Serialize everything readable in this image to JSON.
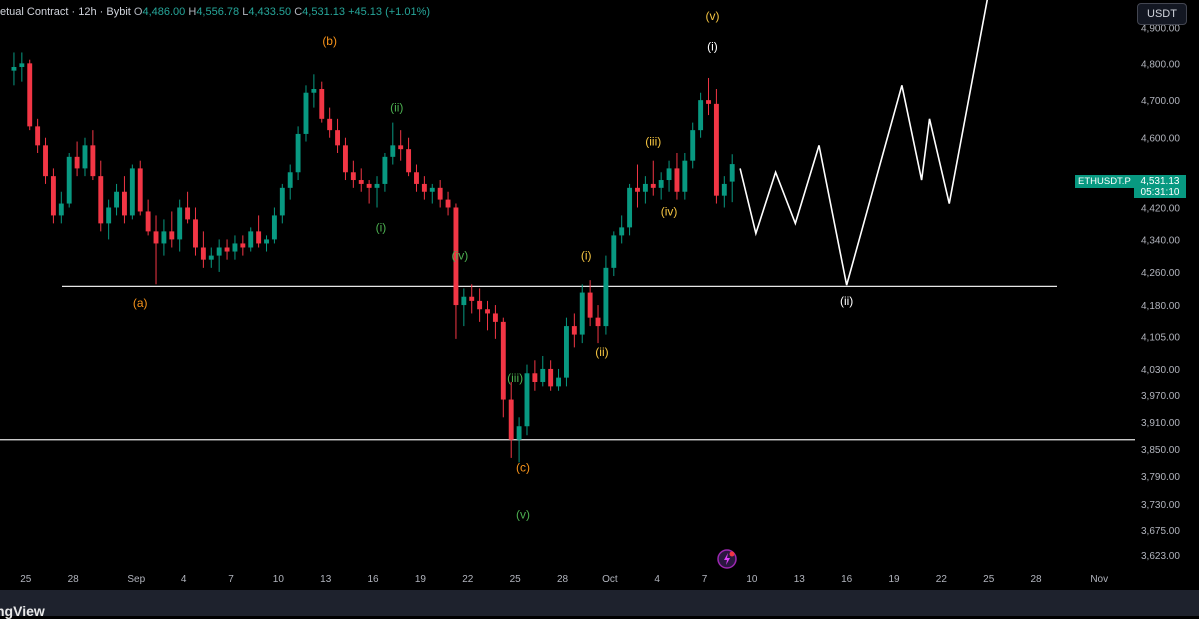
{
  "header": {
    "symbol_desc": "etual Contract · 12h · Bybit",
    "o_label": "O",
    "o_value": "4,486.00",
    "h_label": "H",
    "h_value": "4,556.78",
    "l_label": "L",
    "l_value": "4,433.50",
    "c_label": "C",
    "c_value": "4,531.13",
    "change": "+45.13 (+1.01%)"
  },
  "currency_button": "USDT",
  "last_price": {
    "symbol": "ETHUSDT.P",
    "price": "4,531.13",
    "countdown": "05:31:10"
  },
  "footer": {
    "logo_text": "ngView"
  },
  "colors": {
    "up": "#089981",
    "down": "#f23645",
    "background": "#000000",
    "text": "#d1d4dc"
  },
  "chart_data": {
    "type": "candlestick",
    "timeframe": "12h",
    "y_scale": "log",
    "y_range": [
      3590,
      5000
    ],
    "x_range": [
      "2025-08-24T00:00",
      "2025-11-02T00:00"
    ],
    "y_ticks": [
      "4,900.00",
      "4,800.00",
      "4,700.00",
      "4,600.00",
      "4,420.00",
      "4,340.00",
      "4,260.00",
      "4,180.00",
      "4,105.00",
      "4,030.00",
      "3,970.00",
      "3,910.00",
      "3,850.00",
      "3,790.00",
      "3,730.00",
      "3,675.00",
      "3,623.00"
    ],
    "y_tick_values": [
      4900,
      4800,
      4700,
      4600,
      4420,
      4340,
      4260,
      4180,
      4105,
      4030,
      3970,
      3910,
      3850,
      3790,
      3730,
      3675,
      3623
    ],
    "x_ticks": [
      {
        "label": "25",
        "date": "2025-08-25"
      },
      {
        "label": "28",
        "date": "2025-08-28"
      },
      {
        "label": "Sep",
        "date": "2025-09-01"
      },
      {
        "label": "4",
        "date": "2025-09-04"
      },
      {
        "label": "7",
        "date": "2025-09-07"
      },
      {
        "label": "10",
        "date": "2025-09-10"
      },
      {
        "label": "13",
        "date": "2025-09-13"
      },
      {
        "label": "16",
        "date": "2025-09-16"
      },
      {
        "label": "19",
        "date": "2025-09-19"
      },
      {
        "label": "22",
        "date": "2025-09-22"
      },
      {
        "label": "25",
        "date": "2025-09-25"
      },
      {
        "label": "28",
        "date": "2025-09-28"
      },
      {
        "label": "Oct",
        "date": "2025-10-01"
      },
      {
        "label": "4",
        "date": "2025-10-04"
      },
      {
        "label": "7",
        "date": "2025-10-07"
      },
      {
        "label": "10",
        "date": "2025-10-10"
      },
      {
        "label": "13",
        "date": "2025-10-13"
      },
      {
        "label": "16",
        "date": "2025-10-16"
      },
      {
        "label": "19",
        "date": "2025-10-19"
      },
      {
        "label": "22",
        "date": "2025-10-22"
      },
      {
        "label": "25",
        "date": "2025-10-25"
      },
      {
        "label": "28",
        "date": "2025-10-28"
      },
      {
        "label": "Nov",
        "date": "2025-11-01"
      }
    ],
    "candles": [
      [
        4780,
        4830,
        4740,
        4790
      ],
      [
        4790,
        4830,
        4750,
        4800
      ],
      [
        4800,
        4810,
        4620,
        4630
      ],
      [
        4630,
        4650,
        4560,
        4580
      ],
      [
        4580,
        4600,
        4480,
        4500
      ],
      [
        4500,
        4520,
        4380,
        4400
      ],
      [
        4400,
        4460,
        4380,
        4430
      ],
      [
        4430,
        4560,
        4420,
        4550
      ],
      [
        4550,
        4590,
        4500,
        4520
      ],
      [
        4520,
        4600,
        4500,
        4580
      ],
      [
        4580,
        4620,
        4490,
        4500
      ],
      [
        4500,
        4540,
        4360,
        4380
      ],
      [
        4380,
        4440,
        4340,
        4420
      ],
      [
        4420,
        4480,
        4400,
        4460
      ],
      [
        4460,
        4500,
        4380,
        4400
      ],
      [
        4400,
        4530,
        4390,
        4520
      ],
      [
        4520,
        4540,
        4400,
        4410
      ],
      [
        4410,
        4440,
        4350,
        4360
      ],
      [
        4360,
        4400,
        4230,
        4330
      ],
      [
        4330,
        4390,
        4300,
        4360
      ],
      [
        4360,
        4410,
        4320,
        4340
      ],
      [
        4340,
        4440,
        4310,
        4420
      ],
      [
        4420,
        4460,
        4380,
        4390
      ],
      [
        4390,
        4420,
        4300,
        4320
      ],
      [
        4320,
        4360,
        4270,
        4290
      ],
      [
        4290,
        4320,
        4270,
        4300
      ],
      [
        4300,
        4340,
        4260,
        4320
      ],
      [
        4320,
        4340,
        4290,
        4310
      ],
      [
        4310,
        4350,
        4290,
        4330
      ],
      [
        4330,
        4350,
        4300,
        4320
      ],
      [
        4320,
        4370,
        4310,
        4360
      ],
      [
        4360,
        4400,
        4320,
        4330
      ],
      [
        4330,
        4350,
        4310,
        4340
      ],
      [
        4340,
        4420,
        4330,
        4400
      ],
      [
        4400,
        4480,
        4380,
        4470
      ],
      [
        4470,
        4530,
        4440,
        4510
      ],
      [
        4510,
        4630,
        4490,
        4610
      ],
      [
        4610,
        4740,
        4590,
        4720
      ],
      [
        4720,
        4770,
        4680,
        4730
      ],
      [
        4730,
        4750,
        4640,
        4650
      ],
      [
        4650,
        4680,
        4600,
        4620
      ],
      [
        4620,
        4650,
        4560,
        4580
      ],
      [
        4580,
        4600,
        4490,
        4510
      ],
      [
        4510,
        4540,
        4470,
        4490
      ],
      [
        4490,
        4520,
        4460,
        4480
      ],
      [
        4480,
        4490,
        4430,
        4470
      ],
      [
        4470,
        4500,
        4420,
        4480
      ],
      [
        4480,
        4560,
        4460,
        4550
      ],
      [
        4550,
        4640,
        4530,
        4580
      ],
      [
        4580,
        4620,
        4540,
        4570
      ],
      [
        4570,
        4600,
        4500,
        4510
      ],
      [
        4510,
        4530,
        4460,
        4480
      ],
      [
        4480,
        4500,
        4440,
        4460
      ],
      [
        4460,
        4480,
        4430,
        4470
      ],
      [
        4470,
        4490,
        4420,
        4440
      ],
      [
        4440,
        4460,
        4400,
        4420
      ],
      [
        4420,
        4430,
        4100,
        4180
      ],
      [
        4180,
        4220,
        4130,
        4200
      ],
      [
        4200,
        4230,
        4160,
        4190
      ],
      [
        4190,
        4220,
        4140,
        4170
      ],
      [
        4170,
        4190,
        4120,
        4160
      ],
      [
        4160,
        4180,
        4100,
        4140
      ],
      [
        4140,
        4150,
        3920,
        3960
      ],
      [
        3960,
        4000,
        3830,
        3870
      ],
      [
        3870,
        3920,
        3820,
        3900
      ],
      [
        3900,
        4040,
        3880,
        4020
      ],
      [
        4020,
        4050,
        3980,
        4000
      ],
      [
        4000,
        4060,
        3990,
        4030
      ],
      [
        4030,
        4050,
        3980,
        3990
      ],
      [
        3990,
        4030,
        3980,
        4010
      ],
      [
        4010,
        4150,
        3990,
        4130
      ],
      [
        4130,
        4160,
        4080,
        4110
      ],
      [
        4110,
        4230,
        4090,
        4210
      ],
      [
        4210,
        4240,
        4130,
        4150
      ],
      [
        4150,
        4180,
        4090,
        4130
      ],
      [
        4130,
        4300,
        4110,
        4270
      ],
      [
        4270,
        4360,
        4250,
        4350
      ],
      [
        4350,
        4400,
        4330,
        4370
      ],
      [
        4370,
        4480,
        4350,
        4470
      ],
      [
        4470,
        4530,
        4420,
        4460
      ],
      [
        4460,
        4500,
        4430,
        4480
      ],
      [
        4480,
        4540,
        4450,
        4470
      ],
      [
        4470,
        4510,
        4440,
        4490
      ],
      [
        4490,
        4540,
        4460,
        4520
      ],
      [
        4520,
        4560,
        4440,
        4460
      ],
      [
        4460,
        4560,
        4440,
        4540
      ],
      [
        4540,
        4640,
        4520,
        4620
      ],
      [
        4620,
        4720,
        4600,
        4700
      ],
      [
        4700,
        4760,
        4660,
        4690
      ],
      [
        4690,
        4730,
        4430,
        4450
      ],
      [
        4450,
        4500,
        4420,
        4480
      ],
      [
        4486,
        4556.78,
        4433.5,
        4531.13
      ]
    ],
    "horizontal_lines": [
      4225,
      3870
    ],
    "projection": [
      {
        "t": "2025-10-09T06:00",
        "p": 4520
      },
      {
        "t": "2025-10-10T06:00",
        "p": 4355
      },
      {
        "t": "2025-10-11T12:00",
        "p": 4510
      },
      {
        "t": "2025-10-12T18:00",
        "p": 4380
      },
      {
        "t": "2025-10-14T06:00",
        "p": 4580
      },
      {
        "t": "2025-10-16T00:00",
        "p": 4228
      },
      {
        "t": "2025-10-19T12:00",
        "p": 4740
      },
      {
        "t": "2025-10-20T18:00",
        "p": 4490
      },
      {
        "t": "2025-10-21T06:00",
        "p": 4650
      },
      {
        "t": "2025-10-22T12:00",
        "p": 4430
      },
      {
        "t": "2025-10-25T00:00",
        "p": 5000
      }
    ],
    "wave_labels": [
      {
        "text": "(a)",
        "t": "2025-09-01T06:00",
        "p": 4175,
        "color": "#f7931a"
      },
      {
        "text": "(b)",
        "t": "2025-09-13T06:00",
        "p": 4850,
        "color": "#f7931a"
      },
      {
        "text": "(c)",
        "t": "2025-09-25T12:00",
        "p": 3800,
        "color": "#f7931a"
      },
      {
        "text": "(i)",
        "t": "2025-09-16T12:00",
        "p": 4360,
        "color": "#4caf50"
      },
      {
        "text": "(ii)",
        "t": "2025-09-17T12:00",
        "p": 4670,
        "color": "#4caf50"
      },
      {
        "text": "(iii)",
        "t": "2025-09-25T00:00",
        "p": 4000,
        "color": "#4caf50"
      },
      {
        "text": "(iv)",
        "t": "2025-09-21T12:00",
        "p": 4290,
        "color": "#4caf50"
      },
      {
        "text": "(v)",
        "t": "2025-09-25T12:00",
        "p": 3700,
        "color": "#4caf50"
      },
      {
        "text": "(i)",
        "t": "2025-09-29T12:00",
        "p": 4290,
        "color": "#f5c542"
      },
      {
        "text": "(ii)",
        "t": "2025-09-30T12:00",
        "p": 4060,
        "color": "#f5c542"
      },
      {
        "text": "(iii)",
        "t": "2025-10-03T18:00",
        "p": 4580,
        "color": "#f5c542"
      },
      {
        "text": "(iv)",
        "t": "2025-10-04T18:00",
        "p": 4400,
        "color": "#f5c542"
      },
      {
        "text": "(v)",
        "t": "2025-10-07T12:00",
        "p": 4920,
        "color": "#f5c542"
      },
      {
        "text": "(i)",
        "t": "2025-10-07T12:00",
        "p": 4835,
        "color": "#ffffff"
      },
      {
        "text": "(ii)",
        "t": "2025-10-16T00:00",
        "p": 4180,
        "color": "#ffffff"
      }
    ]
  }
}
